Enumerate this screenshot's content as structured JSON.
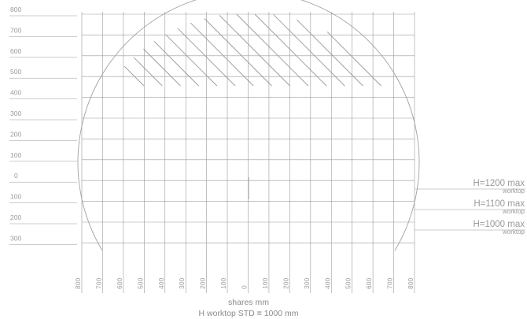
{
  "y_labels": [
    "800",
    "700",
    "600",
    "500",
    "400",
    "300",
    "200",
    "100",
    "0",
    "100",
    "200",
    "300"
  ],
  "x_labels": [
    "800",
    "700",
    "600",
    "500",
    "400",
    "300",
    "200",
    "100",
    "0",
    "100",
    "200",
    "300",
    "400",
    "500",
    "600",
    "700",
    "800"
  ],
  "height_markers": [
    {
      "main": "H=1200 max",
      "sub": "worktop"
    },
    {
      "main": "H=1100 max",
      "sub": "worktop"
    },
    {
      "main": "H=1000 max",
      "sub": "worktop"
    }
  ],
  "footer": {
    "line1": "shares mm",
    "line2_prefix": "H worktop STD",
    "line2_eq": "=",
    "line2_suffix": "1000 mm"
  },
  "colors": {
    "grid": "#9a9a9a",
    "arc": "#a0a0a0",
    "hatch": "#9a9a9a",
    "text": "#9a9a9a"
  }
}
